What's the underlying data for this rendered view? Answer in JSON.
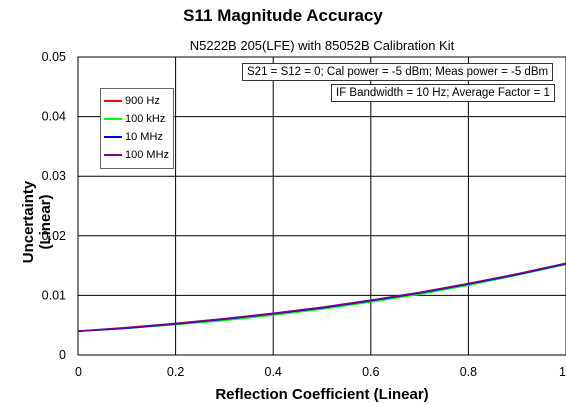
{
  "chart_data": {
    "type": "line",
    "title": "S11 Magnitude Accuracy",
    "subtitle": "N5222B 205(LFE) with 85052B Calibration Kit",
    "xlabel": "Reflection Coefficient (Linear)",
    "ylabel": "Uncertainty (Linear)",
    "xlim": [
      0,
      1
    ],
    "ylim": [
      0,
      0.05
    ],
    "xticks": [
      0,
      0.2,
      0.4,
      0.6,
      0.8,
      1
    ],
    "xtick_labels": [
      "0",
      "0.2",
      "0.4",
      "0.6",
      "0.8",
      "1"
    ],
    "yticks": [
      0,
      0.01,
      0.02,
      0.03,
      0.04,
      0.05
    ],
    "ytick_labels": [
      "0",
      "0.01",
      "0.02",
      "0.03",
      "0.04",
      "0.05"
    ],
    "grid": true,
    "legend_position": "top-left",
    "annotations": [
      "S21 = S12 = 0; Cal power = -5 dBm; Meas power = -5 dBm",
      "IF Bandwidth = 10 Hz; Average Factor = 1"
    ],
    "x": [
      0,
      0.1,
      0.2,
      0.3,
      0.4,
      0.5,
      0.6,
      0.7,
      0.8,
      0.9,
      1.0
    ],
    "series": [
      {
        "name": "900 Hz",
        "color": "#ff0000",
        "values": [
          0.004,
          0.0045,
          0.0052,
          0.006,
          0.0069,
          0.0079,
          0.0091,
          0.0104,
          0.0119,
          0.0135,
          0.0153
        ]
      },
      {
        "name": "100 kHz",
        "color": "#00ff00",
        "values": [
          0.004,
          0.0045,
          0.0051,
          0.0058,
          0.0067,
          0.0077,
          0.0089,
          0.0102,
          0.0117,
          0.0134,
          0.0152
        ]
      },
      {
        "name": "10 MHz",
        "color": "#0000ff",
        "values": [
          0.004,
          0.0045,
          0.0052,
          0.006,
          0.0069,
          0.0079,
          0.0091,
          0.0104,
          0.0119,
          0.0135,
          0.0153
        ]
      },
      {
        "name": "100 MHz",
        "color": "#800080",
        "values": [
          0.004,
          0.0046,
          0.0053,
          0.0061,
          0.007,
          0.008,
          0.0092,
          0.0105,
          0.012,
          0.0136,
          0.0154
        ]
      }
    ]
  }
}
